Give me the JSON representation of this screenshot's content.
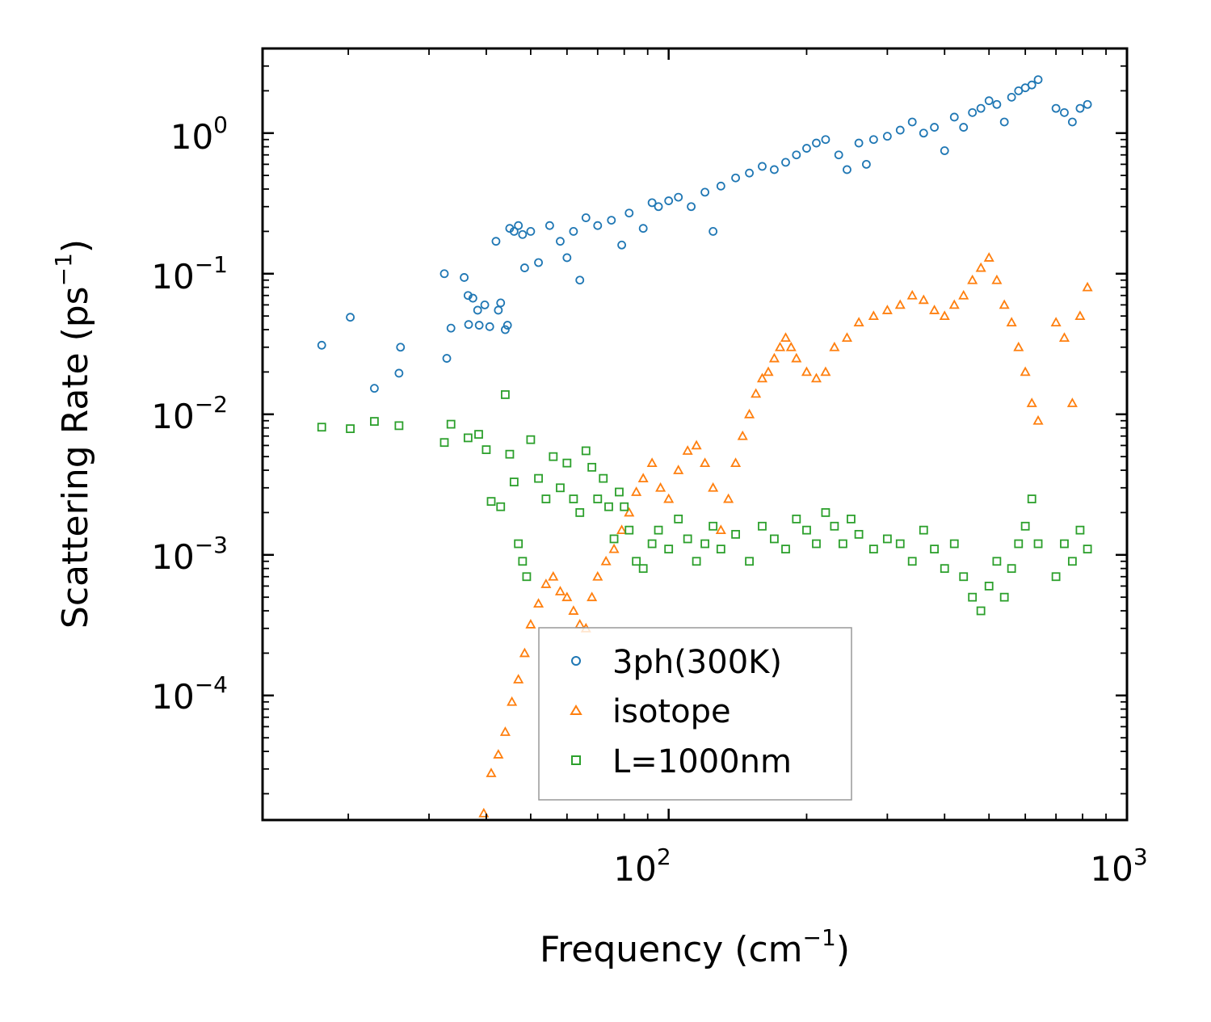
{
  "chart_data": {
    "type": "scatter",
    "xscale": "log",
    "yscale": "log",
    "xlim": [
      13,
      1000
    ],
    "ylim": [
      1.3e-05,
      4
    ],
    "xlabel": {
      "base": "Frequency (cm",
      "sup": "−1",
      "tail": ")"
    },
    "ylabel": {
      "base": "Scattering Rate (ps",
      "sup": "−1",
      "tail": ")"
    },
    "x_ticks": [
      {
        "value": 100,
        "base": "10",
        "exp": "2"
      },
      {
        "value": 1000,
        "base": "10",
        "exp": "3"
      }
    ],
    "y_ticks": [
      {
        "value": 1,
        "base": "10",
        "exp": "0"
      },
      {
        "value": 0.1,
        "base": "10",
        "exp": "−1"
      },
      {
        "value": 0.01,
        "base": "10",
        "exp": "−2"
      },
      {
        "value": 0.001,
        "base": "10",
        "exp": "−3"
      },
      {
        "value": 0.0001,
        "base": "10",
        "exp": "−4"
      }
    ],
    "legend_position": "lower-center",
    "series": [
      {
        "name": "3ph(300K)",
        "marker": "circle",
        "color": "#1f77b4",
        "points": [
          [
            17.5,
            0.031
          ],
          [
            20.2,
            0.049
          ],
          [
            22.8,
            0.0153
          ],
          [
            25.8,
            0.0196
          ],
          [
            26,
            0.03
          ],
          [
            32.4,
            0.1
          ],
          [
            32.8,
            0.025
          ],
          [
            33.5,
            0.041
          ],
          [
            35.8,
            0.094
          ],
          [
            36.5,
            0.07
          ],
          [
            36.6,
            0.0435
          ],
          [
            37.4,
            0.067
          ],
          [
            38.3,
            0.055
          ],
          [
            38.6,
            0.043
          ],
          [
            39.7,
            0.06
          ],
          [
            40.7,
            0.042
          ],
          [
            42,
            0.17
          ],
          [
            42.5,
            0.055
          ],
          [
            43,
            0.062
          ],
          [
            44,
            0.04
          ],
          [
            44.5,
            0.043
          ],
          [
            45,
            0.21
          ],
          [
            46,
            0.2
          ],
          [
            47,
            0.22
          ],
          [
            48,
            0.19
          ],
          [
            48.5,
            0.11
          ],
          [
            50,
            0.2
          ],
          [
            52,
            0.12
          ],
          [
            55,
            0.22
          ],
          [
            58,
            0.17
          ],
          [
            60,
            0.13
          ],
          [
            62,
            0.2
          ],
          [
            64,
            0.09
          ],
          [
            66,
            0.25
          ],
          [
            70,
            0.22
          ],
          [
            75,
            0.24
          ],
          [
            79,
            0.16
          ],
          [
            82,
            0.27
          ],
          [
            88,
            0.21
          ],
          [
            92,
            0.32
          ],
          [
            95,
            0.3
          ],
          [
            100,
            0.33
          ],
          [
            105,
            0.35
          ],
          [
            112,
            0.3
          ],
          [
            120,
            0.38
          ],
          [
            125,
            0.2
          ],
          [
            130,
            0.42
          ],
          [
            140,
            0.48
          ],
          [
            150,
            0.52
          ],
          [
            160,
            0.58
          ],
          [
            170,
            0.55
          ],
          [
            180,
            0.62
          ],
          [
            190,
            0.7
          ],
          [
            200,
            0.78
          ],
          [
            210,
            0.85
          ],
          [
            220,
            0.9
          ],
          [
            235,
            0.7
          ],
          [
            245,
            0.55
          ],
          [
            260,
            0.85
          ],
          [
            270,
            0.6
          ],
          [
            280,
            0.9
          ],
          [
            300,
            0.95
          ],
          [
            320,
            1.05
          ],
          [
            340,
            1.2
          ],
          [
            360,
            1.0
          ],
          [
            380,
            1.1
          ],
          [
            400,
            0.75
          ],
          [
            420,
            1.3
          ],
          [
            440,
            1.1
          ],
          [
            460,
            1.4
          ],
          [
            480,
            1.5
          ],
          [
            500,
            1.7
          ],
          [
            520,
            1.6
          ],
          [
            540,
            1.2
          ],
          [
            560,
            1.8
          ],
          [
            580,
            2.0
          ],
          [
            600,
            2.1
          ],
          [
            620,
            2.2
          ],
          [
            640,
            2.4
          ],
          [
            700,
            1.5
          ],
          [
            730,
            1.4
          ],
          [
            760,
            1.2
          ],
          [
            790,
            1.5
          ],
          [
            820,
            1.6
          ]
        ]
      },
      {
        "name": "isotope",
        "marker": "triangle",
        "color": "#ff7f0e",
        "points": [
          [
            39.5,
            1.45e-05
          ],
          [
            41,
            2.8e-05
          ],
          [
            42.5,
            3.8e-05
          ],
          [
            44,
            5.5e-05
          ],
          [
            45.5,
            9e-05
          ],
          [
            47,
            0.00013
          ],
          [
            48.5,
            0.0002
          ],
          [
            50,
            0.00032
          ],
          [
            52,
            0.00045
          ],
          [
            54,
            0.00062
          ],
          [
            56,
            0.0007
          ],
          [
            58,
            0.00055
          ],
          [
            60,
            0.0005
          ],
          [
            62,
            0.0004
          ],
          [
            64,
            0.00032
          ],
          [
            66,
            0.0003
          ],
          [
            68,
            0.0005
          ],
          [
            70,
            0.0007
          ],
          [
            73,
            0.0009
          ],
          [
            76,
            0.0011
          ],
          [
            79,
            0.0015
          ],
          [
            82,
            0.002
          ],
          [
            85,
            0.0028
          ],
          [
            88,
            0.0035
          ],
          [
            92,
            0.0045
          ],
          [
            96,
            0.003
          ],
          [
            100,
            0.0025
          ],
          [
            105,
            0.004
          ],
          [
            110,
            0.0055
          ],
          [
            115,
            0.006
          ],
          [
            120,
            0.0045
          ],
          [
            125,
            0.003
          ],
          [
            130,
            0.0015
          ],
          [
            135,
            0.0025
          ],
          [
            140,
            0.0045
          ],
          [
            145,
            0.007
          ],
          [
            150,
            0.01
          ],
          [
            155,
            0.014
          ],
          [
            160,
            0.018
          ],
          [
            165,
            0.02
          ],
          [
            170,
            0.025
          ],
          [
            175,
            0.03
          ],
          [
            180,
            0.035
          ],
          [
            185,
            0.03
          ],
          [
            190,
            0.025
          ],
          [
            200,
            0.02
          ],
          [
            210,
            0.018
          ],
          [
            220,
            0.02
          ],
          [
            230,
            0.03
          ],
          [
            245,
            0.035
          ],
          [
            260,
            0.045
          ],
          [
            280,
            0.05
          ],
          [
            300,
            0.055
          ],
          [
            320,
            0.06
          ],
          [
            340,
            0.07
          ],
          [
            360,
            0.065
          ],
          [
            380,
            0.055
          ],
          [
            400,
            0.05
          ],
          [
            420,
            0.06
          ],
          [
            440,
            0.07
          ],
          [
            460,
            0.09
          ],
          [
            480,
            0.11
          ],
          [
            500,
            0.13
          ],
          [
            520,
            0.09
          ],
          [
            540,
            0.06
          ],
          [
            560,
            0.045
          ],
          [
            580,
            0.03
          ],
          [
            600,
            0.02
          ],
          [
            620,
            0.012
          ],
          [
            640,
            0.009
          ],
          [
            700,
            0.045
          ],
          [
            730,
            0.035
          ],
          [
            760,
            0.012
          ],
          [
            790,
            0.05
          ],
          [
            820,
            0.08
          ]
        ]
      },
      {
        "name": "L=1000nm",
        "marker": "square",
        "color": "#2ca02c",
        "points": [
          [
            17.5,
            0.0081
          ],
          [
            20.2,
            0.0079
          ],
          [
            22.8,
            0.0089
          ],
          [
            25.8,
            0.0083
          ],
          [
            32.4,
            0.0063
          ],
          [
            33.5,
            0.0085
          ],
          [
            36.5,
            0.0068
          ],
          [
            38.5,
            0.0072
          ],
          [
            40,
            0.0056
          ],
          [
            41,
            0.0024
          ],
          [
            43,
            0.0022
          ],
          [
            44,
            0.0138
          ],
          [
            45,
            0.0052
          ],
          [
            46,
            0.0033
          ],
          [
            47,
            0.0012
          ],
          [
            48,
            0.0009
          ],
          [
            49,
            0.0007
          ],
          [
            50,
            0.0066
          ],
          [
            52,
            0.0035
          ],
          [
            54,
            0.0025
          ],
          [
            56,
            0.005
          ],
          [
            58,
            0.003
          ],
          [
            60,
            0.0045
          ],
          [
            62,
            0.0025
          ],
          [
            64,
            0.002
          ],
          [
            66,
            0.0055
          ],
          [
            68,
            0.0042
          ],
          [
            70,
            0.0025
          ],
          [
            72,
            0.0035
          ],
          [
            74,
            0.0022
          ],
          [
            76,
            0.0013
          ],
          [
            78,
            0.0028
          ],
          [
            80,
            0.0022
          ],
          [
            82,
            0.0015
          ],
          [
            85,
            0.0009
          ],
          [
            88,
            0.0008
          ],
          [
            92,
            0.0012
          ],
          [
            95,
            0.0015
          ],
          [
            100,
            0.0011
          ],
          [
            105,
            0.0018
          ],
          [
            110,
            0.0013
          ],
          [
            115,
            0.0009
          ],
          [
            120,
            0.0012
          ],
          [
            125,
            0.0016
          ],
          [
            130,
            0.0011
          ],
          [
            140,
            0.0014
          ],
          [
            150,
            0.0009
          ],
          [
            160,
            0.0016
          ],
          [
            170,
            0.0013
          ],
          [
            180,
            0.0011
          ],
          [
            190,
            0.0018
          ],
          [
            200,
            0.0015
          ],
          [
            210,
            0.0012
          ],
          [
            220,
            0.002
          ],
          [
            230,
            0.0016
          ],
          [
            240,
            0.0012
          ],
          [
            250,
            0.0018
          ],
          [
            260,
            0.0014
          ],
          [
            280,
            0.0011
          ],
          [
            300,
            0.0013
          ],
          [
            320,
            0.0012
          ],
          [
            340,
            0.0009
          ],
          [
            360,
            0.0015
          ],
          [
            380,
            0.0011
          ],
          [
            400,
            0.0008
          ],
          [
            420,
            0.0012
          ],
          [
            440,
            0.0007
          ],
          [
            460,
            0.0005
          ],
          [
            480,
            0.0004
          ],
          [
            500,
            0.0006
          ],
          [
            520,
            0.0009
          ],
          [
            540,
            0.0005
          ],
          [
            560,
            0.0008
          ],
          [
            580,
            0.0012
          ],
          [
            600,
            0.0016
          ],
          [
            620,
            0.0025
          ],
          [
            640,
            0.0012
          ],
          [
            700,
            0.0007
          ],
          [
            730,
            0.0012
          ],
          [
            760,
            0.0009
          ],
          [
            790,
            0.0015
          ],
          [
            820,
            0.0011
          ]
        ]
      }
    ]
  }
}
